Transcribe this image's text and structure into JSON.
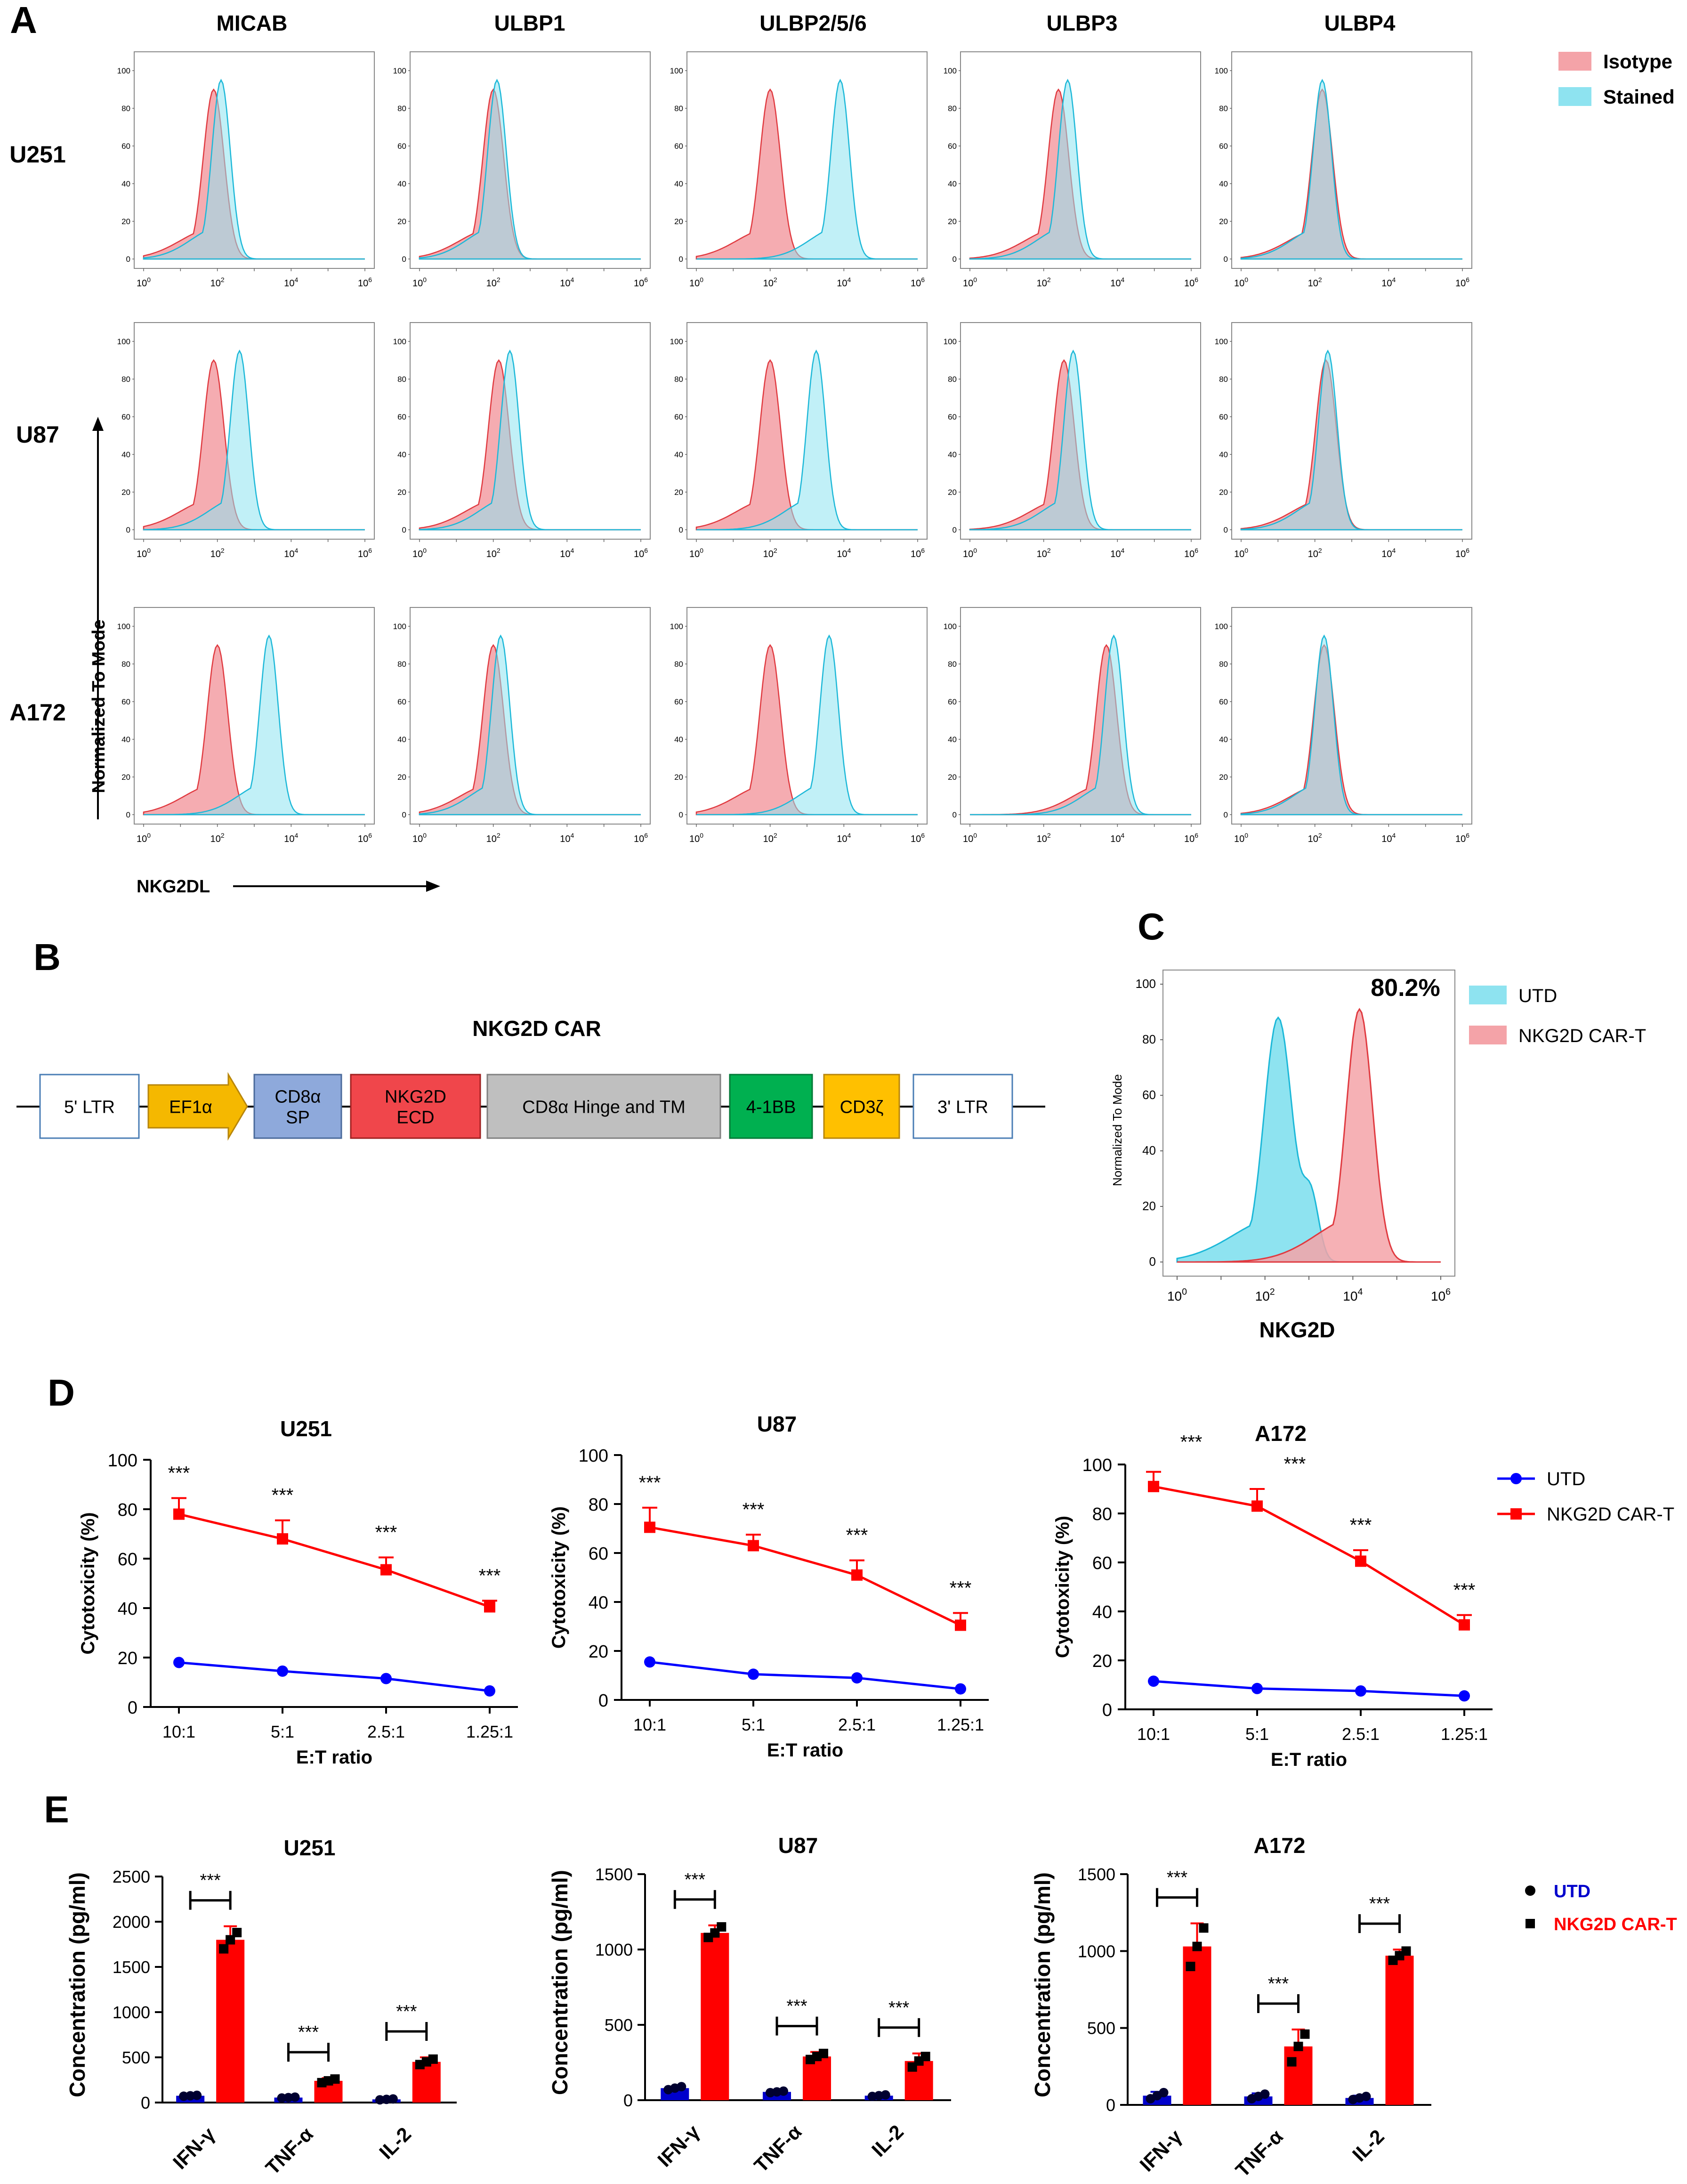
{
  "panels": {
    "A": {
      "letter": "A",
      "columns": [
        "MICAB",
        "ULBP1",
        "ULBP2/5/6",
        "ULBP3",
        "ULBP4"
      ],
      "rows": [
        "U251",
        "U87",
        "A172"
      ],
      "y_axis_label": "Normalized To Mode",
      "x_axis_label": "NKG2DL",
      "legend": [
        {
          "label": "Isotype",
          "color": "#F4A3A8"
        },
        {
          "label": "Stained",
          "color": "#8EE3F0"
        }
      ],
      "y_ticks": [
        "0",
        "20",
        "40",
        "60",
        "80",
        "100"
      ]
    },
    "B": {
      "letter": "B",
      "title": "NKG2D CAR",
      "blocks": [
        {
          "label": "5' LTR",
          "fill": "#FFFFFF",
          "stroke": "#4A7DB5"
        },
        {
          "label": "EF1α",
          "fill": "#F5B800",
          "stroke": "#B8860B",
          "shape": "arrow"
        },
        {
          "label": "CD8α\nSP",
          "fill": "#8EA9DB",
          "stroke": "#4A6A9B"
        },
        {
          "label": "NKG2D\nECD",
          "fill": "#F0464B",
          "stroke": "#A02020"
        },
        {
          "label": "CD8α Hinge and TM",
          "fill": "#BFBFBF",
          "stroke": "#808080"
        },
        {
          "label": "4-1BB",
          "fill": "#00B050",
          "stroke": "#007A37"
        },
        {
          "label": "CD3ζ",
          "fill": "#FFC000",
          "stroke": "#B8860B"
        },
        {
          "label": "3' LTR",
          "fill": "#FFFFFF",
          "stroke": "#4A7DB5"
        }
      ]
    },
    "C": {
      "letter": "C",
      "percent": "80.2%",
      "y_axis_label": "Normalized To Mode",
      "x_axis_label": "NKG2D",
      "legend": [
        {
          "label": "UTD",
          "color": "#8EE3F0"
        },
        {
          "label": "NKG2D CAR-T",
          "color": "#F4A3A8"
        }
      ]
    },
    "D": {
      "letter": "D"
    },
    "E": {
      "letter": "E"
    }
  },
  "colors": {
    "utd_line": "#0000FF",
    "car_line": "#FF0000",
    "isotype": "#F4A3A8",
    "stained": "#8EE3F0"
  },
  "chart_data": [
    {
      "type": "histogram",
      "panel": "A",
      "xscale": "log10",
      "xlim": [
        1,
        1000000
      ],
      "ylim": [
        0,
        100
      ],
      "note": "Peak positions (log10 fluorescence) of Isotype and Stained histograms per cell line and ligand",
      "cells": {
        "U251": {
          "MICAB": {
            "isotype_peak_log10": 1.9,
            "stained_peak_log10": 2.1
          },
          "ULBP1": {
            "isotype_peak_log10": 2.0,
            "stained_peak_log10": 2.1
          },
          "ULBP2/5/6": {
            "isotype_peak_log10": 2.0,
            "stained_peak_log10": 3.9
          },
          "ULBP3": {
            "isotype_peak_log10": 2.4,
            "stained_peak_log10": 2.65
          },
          "ULBP4": {
            "isotype_peak_log10": 2.2,
            "stained_peak_log10": 2.2
          }
        },
        "U87": {
          "MICAB": {
            "isotype_peak_log10": 1.9,
            "stained_peak_log10": 2.6
          },
          "ULBP1": {
            "isotype_peak_log10": 2.15,
            "stained_peak_log10": 2.45
          },
          "ULBP2/5/6": {
            "isotype_peak_log10": 2.0,
            "stained_peak_log10": 3.25
          },
          "ULBP3": {
            "isotype_peak_log10": 2.55,
            "stained_peak_log10": 2.8
          },
          "ULBP4": {
            "isotype_peak_log10": 2.3,
            "stained_peak_log10": 2.35
          }
        },
        "A172": {
          "MICAB": {
            "isotype_peak_log10": 2.0,
            "stained_peak_log10": 3.4
          },
          "ULBP1": {
            "isotype_peak_log10": 2.0,
            "stained_peak_log10": 2.2
          },
          "ULBP2/5/6": {
            "isotype_peak_log10": 2.0,
            "stained_peak_log10": 3.6
          },
          "ULBP3": {
            "isotype_peak_log10": 3.7,
            "stained_peak_log10": 3.9
          },
          "ULBP4": {
            "isotype_peak_log10": 2.25,
            "stained_peak_log10": 2.25
          }
        }
      }
    },
    {
      "type": "histogram",
      "panel": "C",
      "xscale": "log10",
      "xlim": [
        1,
        1000000
      ],
      "ylim": [
        0,
        100
      ],
      "series": [
        {
          "name": "UTD",
          "peak_log10": 2.3,
          "peak_y": 88
        },
        {
          "name": "NKG2D CAR-T",
          "peak_log10": 4.15,
          "peak_y": 91
        }
      ],
      "x_tick_labels": [
        "10^0",
        "10^2",
        "10^4",
        "10^6"
      ],
      "y_tick_labels": [
        "0",
        "20",
        "40",
        "60",
        "80",
        "100"
      ]
    },
    {
      "type": "line",
      "panel": "D",
      "title": "U251",
      "xlabel": "E:T ratio",
      "ylabel": "Cytotoxicity (%)",
      "categories": [
        "10:1",
        "5:1",
        "2.5:1",
        "1.25:1"
      ],
      "ylim": [
        0,
        100
      ],
      "yticks": [
        0,
        20,
        40,
        60,
        80,
        100
      ],
      "series": [
        {
          "name": "UTD",
          "values": [
            18,
            14.5,
            11.5,
            6.5
          ],
          "errors": [
            0,
            0,
            0,
            0
          ]
        },
        {
          "name": "NKG2D CAR-T",
          "values": [
            78,
            68,
            55.5,
            40.5
          ],
          "errors": [
            6.5,
            7.5,
            5,
            2.5
          ]
        }
      ],
      "significance": [
        "***",
        "***",
        "***",
        "***"
      ]
    },
    {
      "type": "line",
      "panel": "D",
      "title": "U87",
      "xlabel": "E:T ratio",
      "ylabel": "Cytotoxicity (%)",
      "categories": [
        "10:1",
        "5:1",
        "2.5:1",
        "1.25:1"
      ],
      "ylim": [
        0,
        100
      ],
      "yticks": [
        0,
        20,
        40,
        60,
        80,
        100
      ],
      "series": [
        {
          "name": "UTD",
          "values": [
            15.5,
            10.5,
            9,
            4.5
          ],
          "errors": [
            0,
            0,
            0,
            0
          ]
        },
        {
          "name": "NKG2D CAR-T",
          "values": [
            70.5,
            63,
            51,
            30.5
          ],
          "errors": [
            8,
            4.5,
            6,
            5
          ]
        }
      ],
      "significance": [
        "***",
        "***",
        "***",
        "***"
      ]
    },
    {
      "type": "line",
      "panel": "D",
      "title": "A172",
      "xlabel": "E:T ratio",
      "ylabel": "Cytotoxicity (%)",
      "categories": [
        "10:1",
        "5:1",
        "2.5:1",
        "1.25:1"
      ],
      "ylim": [
        0,
        100
      ],
      "yticks": [
        0,
        20,
        40,
        60,
        80,
        100
      ],
      "series": [
        {
          "name": "UTD",
          "values": [
            11.5,
            8.5,
            7.5,
            5.5
          ],
          "errors": [
            0,
            0,
            0,
            0
          ]
        },
        {
          "name": "NKG2D CAR-T",
          "values": [
            91,
            83,
            60.5,
            34.5
          ],
          "errors": [
            6,
            7,
            4.5,
            4
          ]
        }
      ],
      "significance": [
        "***",
        "***",
        "***",
        "***"
      ]
    },
    {
      "type": "bar",
      "panel": "E",
      "title": "U251",
      "ylabel": "Concentration (pg/ml)",
      "categories": [
        "IFN-γ",
        "TNF-α",
        "IL-2"
      ],
      "ylim": [
        0,
        2500
      ],
      "yticks": [
        0,
        500,
        1000,
        1500,
        2000,
        2500
      ],
      "series": [
        {
          "name": "UTD",
          "values": [
            75,
            55,
            35
          ],
          "errors": [
            10,
            8,
            5
          ],
          "points": [
            [
              70,
              75,
              80
            ],
            [
              50,
              55,
              60
            ],
            [
              30,
              35,
              40
            ]
          ]
        },
        {
          "name": "NKG2D CAR-T",
          "values": [
            1800,
            240,
            450
          ],
          "errors": [
            150,
            30,
            50
          ],
          "points": [
            [
              1700,
              1800,
              1880
            ],
            [
              220,
              240,
              260
            ],
            [
              420,
              450,
              480
            ]
          ]
        }
      ],
      "significance": [
        "***",
        "***",
        "***"
      ]
    },
    {
      "type": "bar",
      "panel": "E",
      "title": "U87",
      "ylabel": "Concentration (pg/ml)",
      "categories": [
        "IFN-γ",
        "TNF-α",
        "IL-2"
      ],
      "ylim": [
        0,
        1500
      ],
      "yticks": [
        0,
        500,
        1000,
        1500
      ],
      "series": [
        {
          "name": "UTD",
          "values": [
            80,
            55,
            30
          ],
          "errors": [
            10,
            8,
            5
          ],
          "points": [
            [
              70,
              80,
              90
            ],
            [
              50,
              55,
              60
            ],
            [
              25,
              30,
              35
            ]
          ]
        },
        {
          "name": "NKG2D CAR-T",
          "values": [
            1110,
            290,
            260
          ],
          "errors": [
            50,
            30,
            50
          ],
          "points": [
            [
              1080,
              1110,
              1150
            ],
            [
              270,
              290,
              310
            ],
            [
              220,
              260,
              290
            ]
          ]
        }
      ],
      "significance": [
        "***",
        "***",
        "***"
      ]
    },
    {
      "type": "bar",
      "panel": "E",
      "title": "A172",
      "ylabel": "Concentration (pg/ml)",
      "categories": [
        "IFN-γ",
        "TNF-α",
        "IL-2"
      ],
      "ylim": [
        0,
        1500
      ],
      "yticks": [
        0,
        500,
        1000,
        1500
      ],
      "series": [
        {
          "name": "UTD",
          "values": [
            60,
            55,
            45
          ],
          "errors": [
            25,
            20,
            15
          ],
          "points": [
            [
              40,
              60,
              80
            ],
            [
              40,
              55,
              70
            ],
            [
              35,
              45,
              55
            ]
          ]
        },
        {
          "name": "NKG2D CAR-T",
          "values": [
            1030,
            380,
            970
          ],
          "errors": [
            150,
            110,
            40
          ],
          "points": [
            [
              900,
              1030,
              1150
            ],
            [
              280,
              380,
              460
            ],
            [
              940,
              970,
              1000
            ]
          ]
        }
      ],
      "significance": [
        "***",
        "***",
        "***"
      ]
    }
  ],
  "legend_D": [
    {
      "label": "UTD",
      "color": "#0000FF",
      "marker": "circle"
    },
    {
      "label": "NKG2D CAR-T",
      "color": "#FF0000",
      "marker": "square"
    }
  ],
  "legend_E": [
    {
      "label": "UTD",
      "color": "#0000CC",
      "marker": "circle"
    },
    {
      "label": "NKG2D CAR-T",
      "color": "#FF0000",
      "marker": "square"
    }
  ]
}
